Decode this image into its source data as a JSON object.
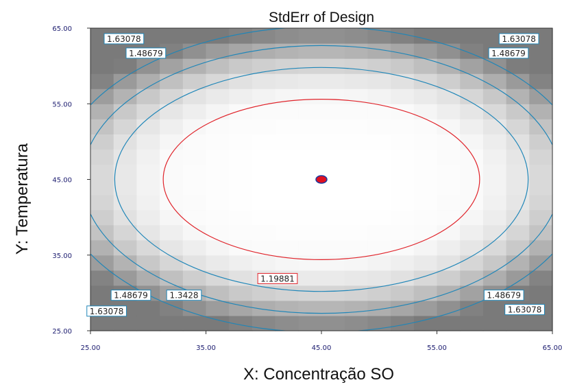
{
  "chart_data": {
    "type": "heatmap",
    "title": "StdErr of Design",
    "xlabel": "X: Concentração SO",
    "ylabel": "Y: Temperatura",
    "xlim": [
      25,
      65
    ],
    "ylim": [
      25,
      65
    ],
    "x_ticks": [
      "25.00",
      "35.00",
      "45.00",
      "55.00",
      "65.00"
    ],
    "y_ticks": [
      "25.00",
      "35.00",
      "45.00",
      "55.00",
      "65.00"
    ],
    "grid": false,
    "center_point": {
      "x": 45,
      "y": 45
    },
    "contours": [
      {
        "level": 1.19881,
        "label": "1.19881",
        "color": "#e0232a",
        "rx": 13.7,
        "ry": 10.6
      },
      {
        "level": 1.3428,
        "label": "1.3428",
        "color": "#1f86b8",
        "rx": 17.9,
        "ry": 14.8
      },
      {
        "level": 1.48679,
        "label": "1.48679",
        "color": "#1f86b8",
        "rx": 20.7,
        "ry": 17.7
      },
      {
        "level": 1.63078,
        "label": "1.63078",
        "color": "#1f86b8",
        "rx": 22.9,
        "ry": 20.2
      }
    ],
    "contour_labels": [
      {
        "text": "1.63078",
        "x": 27.9,
        "y": 63.6,
        "color": "#1f86b8"
      },
      {
        "text": "1.48679",
        "x": 29.8,
        "y": 61.7,
        "color": "#1f86b8"
      },
      {
        "text": "1.63078",
        "x": 62.1,
        "y": 63.6,
        "color": "#1f86b8"
      },
      {
        "text": "1.48679",
        "x": 61.2,
        "y": 61.7,
        "color": "#1f86b8"
      },
      {
        "text": "1.19881",
        "x": 41.2,
        "y": 31.9,
        "color": "#e0232a"
      },
      {
        "text": "1.48679",
        "x": 28.5,
        "y": 29.7,
        "color": "#1f86b8"
      },
      {
        "text": "1.3428",
        "x": 33.1,
        "y": 29.7,
        "color": "#1f86b8"
      },
      {
        "text": "1.63078",
        "x": 26.4,
        "y": 27.6,
        "color": "#1f86b8"
      },
      {
        "text": "1.48679",
        "x": 60.8,
        "y": 29.7,
        "color": "#1f86b8"
      },
      {
        "text": "1.63078",
        "x": 62.6,
        "y": 27.8,
        "color": "#1f86b8"
      }
    ]
  },
  "colors": {
    "low": "#ffffff",
    "high": "#7a7a7a",
    "center_point_fill": "#e01020",
    "center_point_stroke": "#1a3aa0"
  }
}
